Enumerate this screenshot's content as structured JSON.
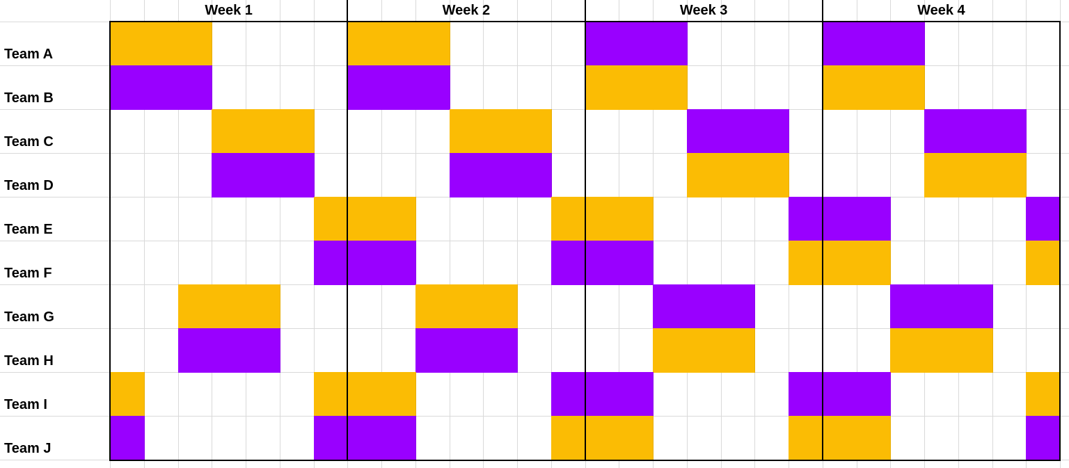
{
  "colors": {
    "orange": "#fbbc04",
    "purple": "#9900ff",
    "grid": "#d9d9d9",
    "border": "#000000"
  },
  "weeks": [
    "Week 1",
    "Week 2",
    "Week 3",
    "Week 4"
  ],
  "teams": [
    "Team A",
    "Team B",
    "Team C",
    "Team D",
    "Team E",
    "Team F",
    "Team G",
    "Team H",
    "Team I",
    "Team J"
  ],
  "schedule": [
    "OOO....OOO....PPP....PPP....",
    "PPP....PPP....OOO....OOO....",
    "...OOO....OOO....PPP....PPP.",
    "...PPP....PPP....OOO....OOO.",
    "......OOO....OOO....PPP....P",
    "......PPP....PPP....OOO....O",
    "..OOO....OOO....PPP....PPP..",
    "..PPP....PPP....OOO....OOO..",
    "O.....OOO....PPP....PPP....O",
    "P.....PPP....OOO....OOO....P"
  ]
}
